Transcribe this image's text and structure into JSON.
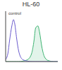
{
  "chart_data": {
    "type": "line",
    "title": "HL-60",
    "x": [
      1,
      1.5,
      2,
      3,
      4,
      5,
      7,
      10,
      20,
      50,
      100,
      150,
      200,
      300,
      400,
      600,
      1000,
      2000,
      5000,
      10000
    ],
    "series": [
      {
        "name": "control",
        "type": "line",
        "color": "#6a5acd",
        "values": [
          5,
          20,
          50,
          85,
          100,
          90,
          55,
          25,
          5,
          1,
          0,
          0,
          0,
          0,
          0,
          0,
          0,
          0,
          0,
          0
        ]
      },
      {
        "type": "area",
        "color": "#3cb371",
        "values": [
          0,
          0,
          0,
          0,
          0,
          0,
          0,
          0,
          1,
          5,
          20,
          50,
          80,
          85,
          70,
          35,
          10,
          2,
          0,
          0
        ]
      }
    ],
    "log": "x",
    "xlim": [
      1,
      10000
    ],
    "xticks": [
      1,
      10,
      100,
      1000,
      10000
    ],
    "ylim": [
      0,
      120
    ],
    "yticks": [
      0,
      40,
      80,
      120
    ],
    "tick_labels": false
  }
}
